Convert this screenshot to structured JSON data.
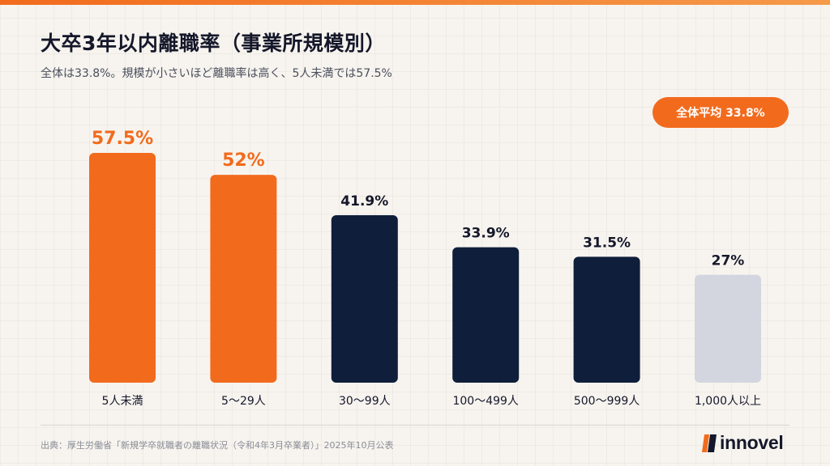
{
  "header": {
    "title": "大卒3年以内離職率（事業所規模別）",
    "subtitle": "全体は33.8%。規模が小さいほど離職率は高く、5人未満では57.5%"
  },
  "badge": {
    "label": "全体平均 33.8%"
  },
  "chart_data": {
    "type": "bar",
    "title": "大卒3年以内離職率（事業所規模別）",
    "subtitle": "全体は33.8%。規模が小さいほど離職率は高く、5人未満では57.5%",
    "categories": [
      "5人未満",
      "5〜29人",
      "30〜99人",
      "100〜499人",
      "500〜999人",
      "1,000人以上"
    ],
    "values": [
      57.5,
      52,
      41.9,
      33.9,
      31.5,
      27
    ],
    "value_labels": [
      "57.5%",
      "52%",
      "41.9%",
      "33.9%",
      "31.5%",
      "27%"
    ],
    "bar_colors": [
      "#f26b1d",
      "#f26b1d",
      "#0f1e3a",
      "#0f1e3a",
      "#0f1e3a",
      "#d3d6de"
    ],
    "label_colors": [
      "#f26b1d",
      "#f26b1d",
      "#15172a",
      "#15172a",
      "#15172a",
      "#15172a"
    ],
    "annotation": "全体平均 33.8%",
    "ylim": [
      0,
      57.5
    ],
    "grid": false,
    "legend": "none"
  },
  "footer": {
    "source": "出典：厚生労働省「新規学卒就職者の離職状況（令和4年3月卒業者）」2025年10月公表",
    "logo_text": "innovel"
  },
  "colors": {
    "accent": "#f26b1d",
    "navy": "#0f1e3a",
    "gray": "#d3d6de",
    "background": "#f7f4ef"
  }
}
